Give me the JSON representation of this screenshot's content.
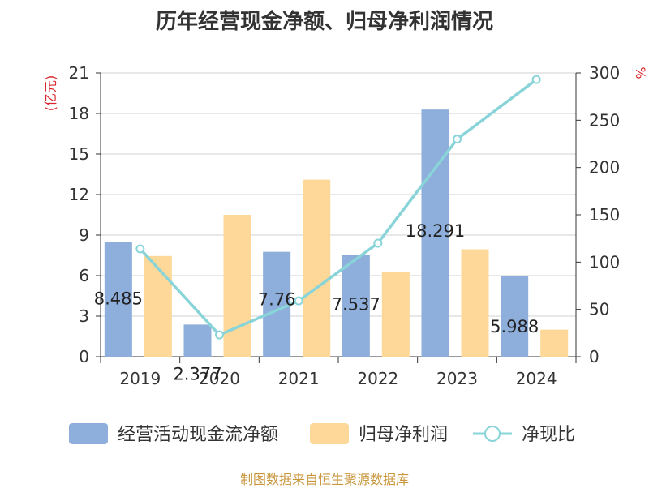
{
  "chart_data": {
    "type": "bar",
    "title": "历年经营现金净额、归母净利润情况",
    "categories": [
      "2019",
      "2020",
      "2021",
      "2022",
      "2023",
      "2024"
    ],
    "series": [
      {
        "name": "经营活动现金流净额",
        "type": "bar",
        "axis": "left",
        "color": "#8eaedb",
        "values": [
          8.485,
          2.377,
          7.76,
          7.537,
          18.291,
          5.988
        ],
        "labels": [
          "8.485",
          "2.377",
          "7.76",
          "7.537",
          "18.291",
          "5.988"
        ]
      },
      {
        "name": "归母净利润",
        "type": "bar",
        "axis": "left",
        "color": "#fdd898",
        "values": [
          7.45,
          10.5,
          13.1,
          6.3,
          7.95,
          2.0
        ]
      },
      {
        "name": "净现比",
        "type": "line",
        "axis": "right",
        "color": "#88d4d8",
        "values": [
          114,
          23,
          59,
          120,
          230,
          293
        ]
      }
    ],
    "left_axis": {
      "label": "(亿元)",
      "ticks": [
        "0",
        "3",
        "6",
        "9",
        "12",
        "15",
        "18",
        "21"
      ],
      "ylim": [
        0,
        21
      ]
    },
    "right_axis": {
      "label": "%",
      "ticks": [
        "0",
        "50",
        "100",
        "150",
        "200",
        "250",
        "300"
      ],
      "ylim": [
        0,
        300
      ]
    },
    "grid": true,
    "legend_position": "bottom"
  },
  "source_note": "制图数据来自恒生聚源数据库"
}
